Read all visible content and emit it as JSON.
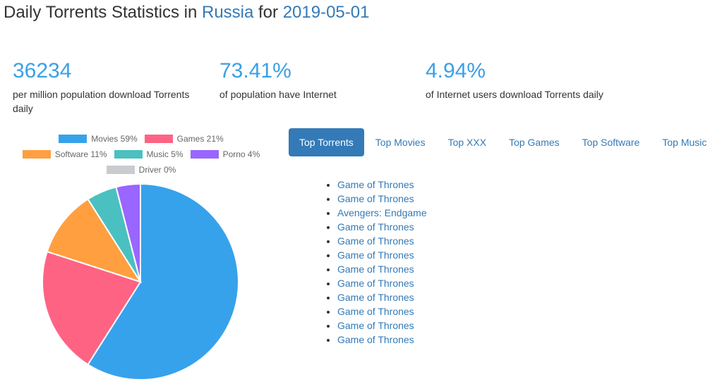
{
  "header": {
    "prefix": "Daily Torrents Statistics in",
    "country": "Russia",
    "middle": "for",
    "date": "2019-05-01"
  },
  "stats": [
    {
      "value": "36234",
      "label": "per million population download Torrents daily"
    },
    {
      "value": "73.41%",
      "label": "of population have Internet"
    },
    {
      "value": "4.94%",
      "label": "of Internet users download Torrents daily"
    }
  ],
  "chart_data": {
    "type": "pie",
    "categories": [
      "Movies",
      "Games",
      "Software",
      "Music",
      "Porno",
      "Driver"
    ],
    "values": [
      59,
      21,
      11,
      5,
      4,
      0
    ],
    "legend_labels": [
      "Movies 59%",
      "Games 21%",
      "Software 11%",
      "Music 5%",
      "Porno 4%",
      "Driver 0%"
    ],
    "colors": [
      "#36a2eb",
      "#ff6384",
      "#ff9f40",
      "#4bc0c0",
      "#9966ff",
      "#c9cbcf"
    ],
    "legend_position": "top"
  },
  "tabs": [
    "Top Torrents",
    "Top Movies",
    "Top XXX",
    "Top Games",
    "Top Software",
    "Top Music"
  ],
  "top_torrents": [
    "Game of Thrones",
    "Game of Thrones",
    "Avengers: Endgame",
    "Game of Thrones",
    "Game of Thrones",
    "Game of Thrones",
    "Game of Thrones",
    "Game of Thrones",
    "Game of Thrones",
    "Game of Thrones",
    "Game of Thrones",
    "Game of Thrones"
  ]
}
